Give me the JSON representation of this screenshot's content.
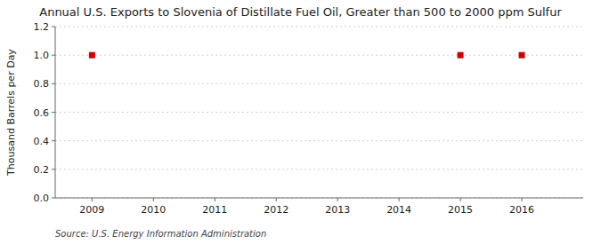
{
  "chart_data": {
    "type": "scatter",
    "title": "Annual U.S. Exports to Slovenia of Distillate Fuel Oil, Greater than 500 to 2000 ppm Sulfur",
    "ylabel": "Thousand Barrels per Day",
    "source": "Source: U.S. Energy Information Administration",
    "x": [
      2009,
      2015,
      2016
    ],
    "values": [
      1.0,
      1.0,
      1.0
    ],
    "color": "#cc0000",
    "marker": "square",
    "xlim": [
      2008.4,
      2017.0
    ],
    "ylim": [
      0.0,
      1.2
    ],
    "xticks": [
      2009,
      2010,
      2011,
      2012,
      2013,
      2014,
      2015,
      2016
    ],
    "yticks": [
      {
        "value": 0.0,
        "label": "0.0"
      },
      0.2,
      0.4,
      0.6,
      0.8,
      {
        "value": 1.0,
        "label": "1.0"
      },
      1.2
    ],
    "grid": true
  }
}
